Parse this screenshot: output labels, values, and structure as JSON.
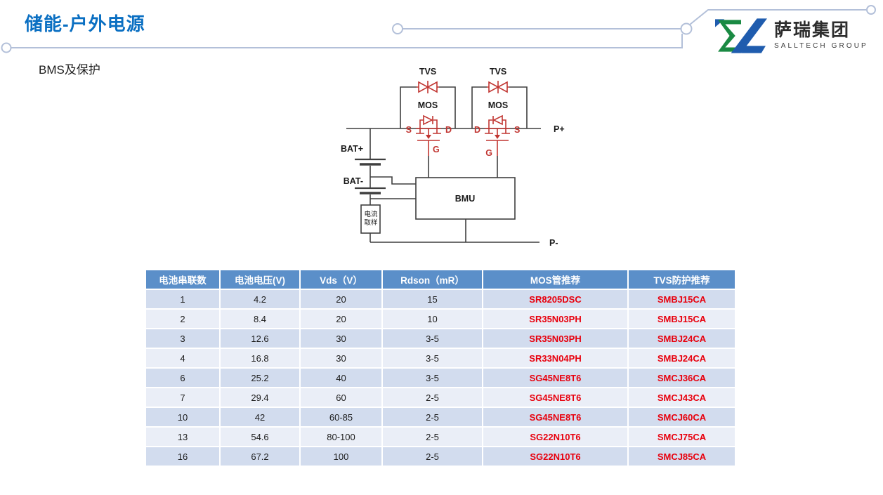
{
  "slide": {
    "title": "储能-户外电源",
    "subtitle": "BMS及保护"
  },
  "logo": {
    "name_cn": "萨瑞集团",
    "name_en": "SALLTECH GROUP"
  },
  "diagram": {
    "labels": {
      "tvs": "TVS",
      "mos": "MOS",
      "s": "S",
      "d": "D",
      "g": "G",
      "bat_plus": "BAT+",
      "bat_minus": "BAT-",
      "bmu": "BMU",
      "current_sample_line1": "电流",
      "current_sample_line2": "取样",
      "p_plus": "P+",
      "p_minus": "P-"
    }
  },
  "table": {
    "columns": [
      "电池串联数",
      "电池电压(V)",
      "Vds（V）",
      "Rdson（mR）",
      "MOS管推荐",
      "TVS防护推荐"
    ],
    "rows": [
      [
        "1",
        "4.2",
        "20",
        "15",
        "SR8205DSC",
        "SMBJ15CA"
      ],
      [
        "2",
        "8.4",
        "20",
        "10",
        "SR35N03PH",
        "SMBJ15CA"
      ],
      [
        "3",
        "12.6",
        "30",
        "3-5",
        "SR35N03PH",
        "SMBJ24CA"
      ],
      [
        "4",
        "16.8",
        "30",
        "3-5",
        "SR33N04PH",
        "SMBJ24CA"
      ],
      [
        "6",
        "25.2",
        "40",
        "3-5",
        "SG45NE8T6",
        "SMCJ36CA"
      ],
      [
        "7",
        "29.4",
        "60",
        "2-5",
        "SG45NE8T6",
        "SMCJ43CA"
      ],
      [
        "10",
        "42",
        "60-85",
        "2-5",
        "SG45NE8T6",
        "SMCJ60CA"
      ],
      [
        "13",
        "54.6",
        "80-100",
        "2-5",
        "SG22N10T6",
        "SMCJ75CA"
      ],
      [
        "16",
        "67.2",
        "100",
        "2-5",
        "SG22N10T6",
        "SMCJ85CA"
      ]
    ],
    "red_columns": [
      4,
      5
    ]
  },
  "colors": {
    "title": "#0a6fc2",
    "header_bg": "#5b8fc9",
    "row_odd": "#d2dcee",
    "row_even": "#eaeef7",
    "part_red": "#e8000d",
    "circuit_red": "#c13531",
    "wire": "#3f3f3f",
    "connector": "#b3c0d9",
    "logo_green": "#1a8a43",
    "logo_blue": "#1f5cae"
  }
}
